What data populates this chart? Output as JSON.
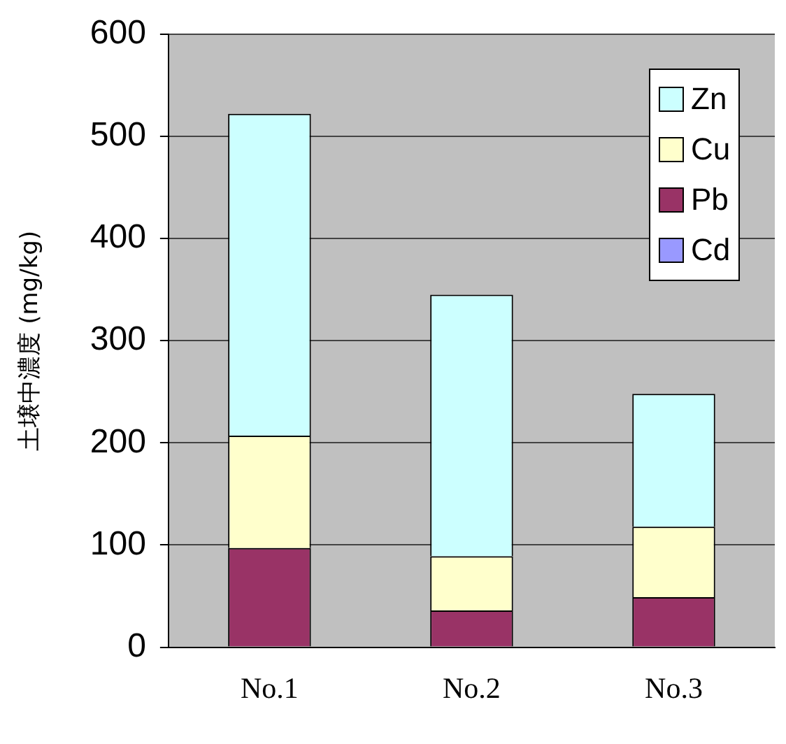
{
  "chart_data": {
    "type": "bar",
    "stacked": true,
    "ylabel": "土壌中濃度 (mg/kg)",
    "categories": [
      "No.1",
      "No.2",
      "No.3"
    ],
    "series": [
      {
        "name": "Cd",
        "color": "#9999ff",
        "values": [
          null,
          null,
          null
        ]
      },
      {
        "name": "Pb",
        "color": "#993366",
        "values": [
          97,
          36,
          49
        ]
      },
      {
        "name": "Cu",
        "color": "#ffffcc",
        "values": [
          110,
          53,
          69
        ]
      },
      {
        "name": "Zn",
        "color": "#ccffff",
        "values": [
          315,
          256,
          130
        ]
      }
    ],
    "ylim": [
      0,
      600
    ],
    "yticks": [
      0,
      100,
      200,
      300,
      400,
      500,
      600
    ],
    "grid": "y",
    "legend": "top right"
  }
}
